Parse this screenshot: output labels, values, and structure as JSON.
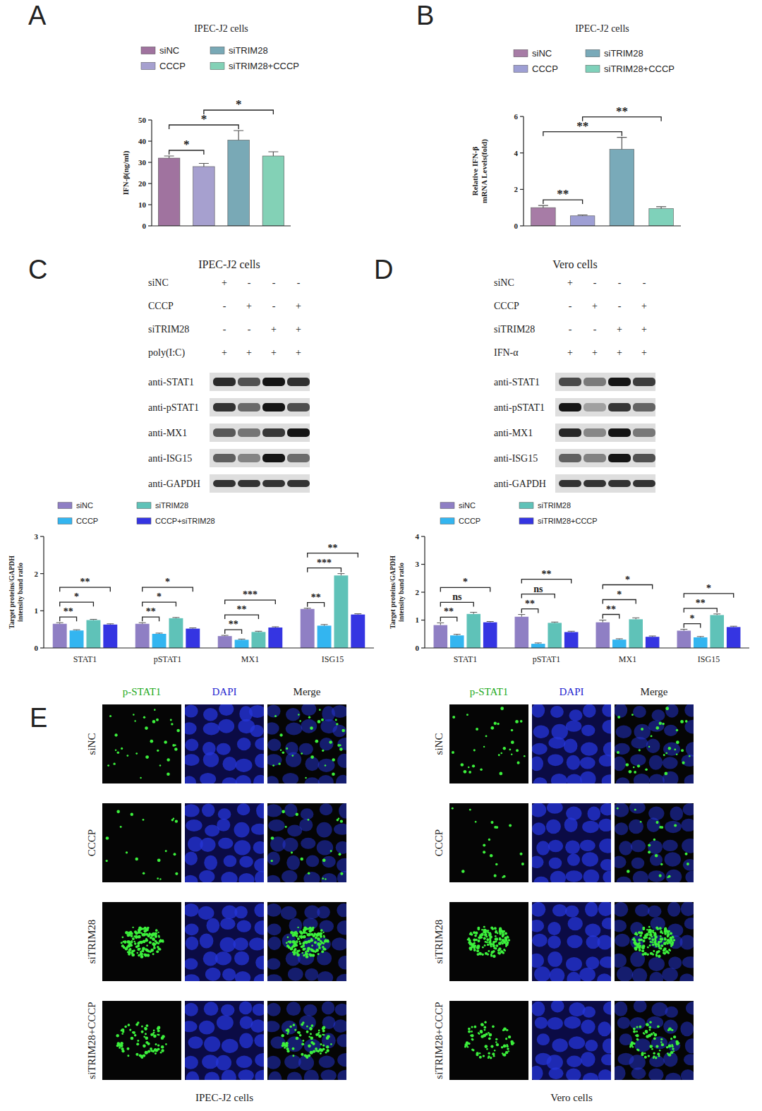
{
  "chart_data": [
    {
      "panel": "A",
      "type": "bar",
      "title": "IPEC-J2 cells",
      "y_label": "IFN-β(ng/ml)",
      "categories": [
        "siNC",
        "CCCP",
        "siTRIM28",
        "siTRIM28+CCCP"
      ],
      "values": [
        32,
        28,
        40.5,
        33
      ],
      "errors": [
        1,
        1.5,
        4.5,
        2
      ],
      "colors": [
        "#a0739f",
        "#a6a0cf",
        "#79a9b6",
        "#83d1b6"
      ],
      "ylim": [
        0,
        50
      ],
      "yticks": [
        0,
        10,
        20,
        30,
        40,
        50
      ],
      "tick_labels": "y",
      "legend": "top",
      "comparisons": [
        {
          "from": 0,
          "to": 1,
          "label": "*"
        },
        {
          "from": 0,
          "to": 2,
          "label": "*"
        },
        {
          "from": 1,
          "to": 3,
          "label": "*"
        }
      ]
    },
    {
      "panel": "B",
      "type": "bar",
      "title": "IPEC-J2 cells",
      "y_label": "Relative IFN-β mRNA Levels(fold)",
      "categories": [
        "siNC",
        "CCCP",
        "siTRIM28",
        "siTRIM28+CCCP"
      ],
      "values": [
        1,
        0.55,
        4.2,
        0.95
      ],
      "errors": [
        0.12,
        0.05,
        0.65,
        0.1
      ],
      "colors": [
        "#a77ca6",
        "#9e9fd4",
        "#79aab9",
        "#7fd1ba"
      ],
      "ylim": [
        0,
        6
      ],
      "yticks": [
        0,
        2,
        4,
        6
      ],
      "tick_labels": "y",
      "legend": "top",
      "comparisons": [
        {
          "from": 0,
          "to": 1,
          "label": "**"
        },
        {
          "from": 0,
          "to": 2,
          "label": "**"
        },
        {
          "from": 1,
          "to": 3,
          "label": "**"
        }
      ]
    },
    {
      "type": "bar",
      "y_label": "Target proteins/GAPDH intensity band ratio",
      "categories": [
        "STAT1",
        "pSTAT1",
        "MX1",
        "ISG15"
      ],
      "series": [
        {
          "name": "siNC",
          "color": "#8f7fc4",
          "values": [
            0.65,
            0.65,
            0.32,
            1.05
          ],
          "errors": [
            0.03,
            0.03,
            0.02,
            0.02
          ]
        },
        {
          "name": "CCCP",
          "color": "#33b5f0",
          "values": [
            0.47,
            0.38,
            0.22,
            0.6
          ],
          "errors": [
            0.02,
            0.02,
            0.02,
            0.03
          ]
        },
        {
          "name": "siTRIM28",
          "color": "#5fc2b8",
          "values": [
            0.75,
            0.8,
            0.43,
            1.95
          ],
          "errors": [
            0.02,
            0.02,
            0.02,
            0.05
          ]
        },
        {
          "name": "CCCP+siTRIM28",
          "color": "#3535e2",
          "values": [
            0.63,
            0.52,
            0.55,
            0.9
          ],
          "errors": [
            0.02,
            0.02,
            0.02,
            0.02
          ]
        }
      ],
      "ylim": [
        0,
        3
      ],
      "yticks": [
        0,
        1,
        2,
        3
      ],
      "legend": "top",
      "comparisons": [
        {
          "category": 0,
          "from": 0,
          "to": 1,
          "label": "**"
        },
        {
          "category": 0,
          "from": 0,
          "to": 2,
          "label": "*"
        },
        {
          "category": 0,
          "from": 0,
          "to": 3,
          "label": "**"
        },
        {
          "category": 1,
          "from": 0,
          "to": 1,
          "label": "**"
        },
        {
          "category": 1,
          "from": 0,
          "to": 2,
          "label": "*"
        },
        {
          "category": 1,
          "from": 0,
          "to": 3,
          "label": "*"
        },
        {
          "category": 2,
          "from": 0,
          "to": 1,
          "label": "**"
        },
        {
          "category": 2,
          "from": 0,
          "to": 2,
          "label": "**"
        },
        {
          "category": 2,
          "from": 0,
          "to": 3,
          "label": "***"
        },
        {
          "category": 3,
          "from": 0,
          "to": 1,
          "label": "**"
        },
        {
          "category": 3,
          "from": 0,
          "to": 2,
          "label": "***"
        },
        {
          "category": 3,
          "from": 0,
          "to": 3,
          "label": "**"
        }
      ]
    },
    {
      "type": "bar",
      "y_label": "Target proteins/GAPDH intensity band ratio",
      "categories": [
        "STAT1",
        "pSTAT1",
        "MX1",
        "ISG15"
      ],
      "series": [
        {
          "name": "siNC",
          "color": "#8f7fc4",
          "values": [
            0.82,
            1.12,
            0.92,
            0.62
          ],
          "errors": [
            0.08,
            0.08,
            0.08,
            0.05
          ]
        },
        {
          "name": "CCCP",
          "color": "#33b5f0",
          "values": [
            0.45,
            0.15,
            0.3,
            0.38
          ],
          "errors": [
            0.04,
            0.03,
            0.03,
            0.03
          ]
        },
        {
          "name": "siTRIM28",
          "color": "#5fc2b8",
          "values": [
            1.22,
            0.9,
            1.03,
            1.18
          ],
          "errors": [
            0.06,
            0.03,
            0.05,
            0.04
          ]
        },
        {
          "name": "siTRIM28+CCCP",
          "color": "#3535e2",
          "values": [
            0.92,
            0.57,
            0.4,
            0.75
          ],
          "errors": [
            0.03,
            0.03,
            0.03,
            0.03
          ]
        }
      ],
      "ylim": [
        0,
        4
      ],
      "yticks": [
        0,
        1,
        2,
        3,
        4
      ],
      "legend": "top",
      "comparisons": [
        {
          "category": 0,
          "from": 0,
          "to": 1,
          "label": "**"
        },
        {
          "category": 0,
          "from": 0,
          "to": 2,
          "label": "ns"
        },
        {
          "category": 0,
          "from": 0,
          "to": 3,
          "label": "*"
        },
        {
          "category": 1,
          "from": 0,
          "to": 1,
          "label": "**"
        },
        {
          "category": 1,
          "from": 0,
          "to": 2,
          "label": "ns"
        },
        {
          "category": 1,
          "from": 0,
          "to": 3,
          "label": "**"
        },
        {
          "category": 2,
          "from": 0,
          "to": 1,
          "label": "**"
        },
        {
          "category": 2,
          "from": 0,
          "to": 2,
          "label": "*"
        },
        {
          "category": 2,
          "from": 0,
          "to": 3,
          "label": "*"
        },
        {
          "category": 3,
          "from": 0,
          "to": 1,
          "label": "*"
        },
        {
          "category": 3,
          "from": 0,
          "to": 2,
          "label": "**"
        },
        {
          "category": 3,
          "from": 0,
          "to": 3,
          "label": "*"
        }
      ]
    }
  ],
  "blots": [
    {
      "panel": "C",
      "title": "IPEC-J2 cells",
      "conditions": [
        {
          "label": "siNC",
          "signs": [
            "+",
            "-",
            "-",
            "-"
          ]
        },
        {
          "label": "CCCP",
          "signs": [
            "-",
            "+",
            "-",
            "+"
          ]
        },
        {
          "label": "siTRIM28",
          "signs": [
            "-",
            "-",
            "+",
            "+"
          ]
        },
        {
          "label": "poly(I:C)",
          "signs": [
            "+",
            "+",
            "+",
            "+"
          ]
        }
      ],
      "antibodies": [
        "anti-STAT1",
        "anti-pSTAT1",
        "anti-MX1",
        "anti-ISG15",
        "anti-GAPDH"
      ]
    },
    {
      "panel": "D",
      "title": "Vero cells",
      "conditions": [
        {
          "label": "siNC",
          "signs": [
            "+",
            "-",
            "-",
            "-"
          ]
        },
        {
          "label": "CCCP",
          "signs": [
            "-",
            "+",
            "-",
            "+"
          ]
        },
        {
          "label": "siTRIM28",
          "signs": [
            "-",
            "-",
            "+",
            "+"
          ]
        },
        {
          "label": "IFN-α",
          "signs": [
            "+",
            "+",
            "+",
            "+"
          ]
        }
      ],
      "antibodies": [
        "anti-STAT1",
        "anti-pSTAT1",
        "anti-MX1",
        "anti-ISG15",
        "anti-GAPDH"
      ]
    }
  ],
  "immunofluorescence": {
    "panel": "E",
    "channels": [
      "p-STAT1",
      "DAPI",
      "Merge"
    ],
    "groups": [
      {
        "caption": "IPEC-J2 cells",
        "rows": [
          "siNC",
          "CCCP",
          "siTRIM28",
          "siTRIM28+CCCP"
        ]
      },
      {
        "caption": "Vero cells",
        "rows": [
          "siNC",
          "CCCP",
          "siTRIM28",
          "siTRIM28+CCCP"
        ]
      }
    ]
  }
}
